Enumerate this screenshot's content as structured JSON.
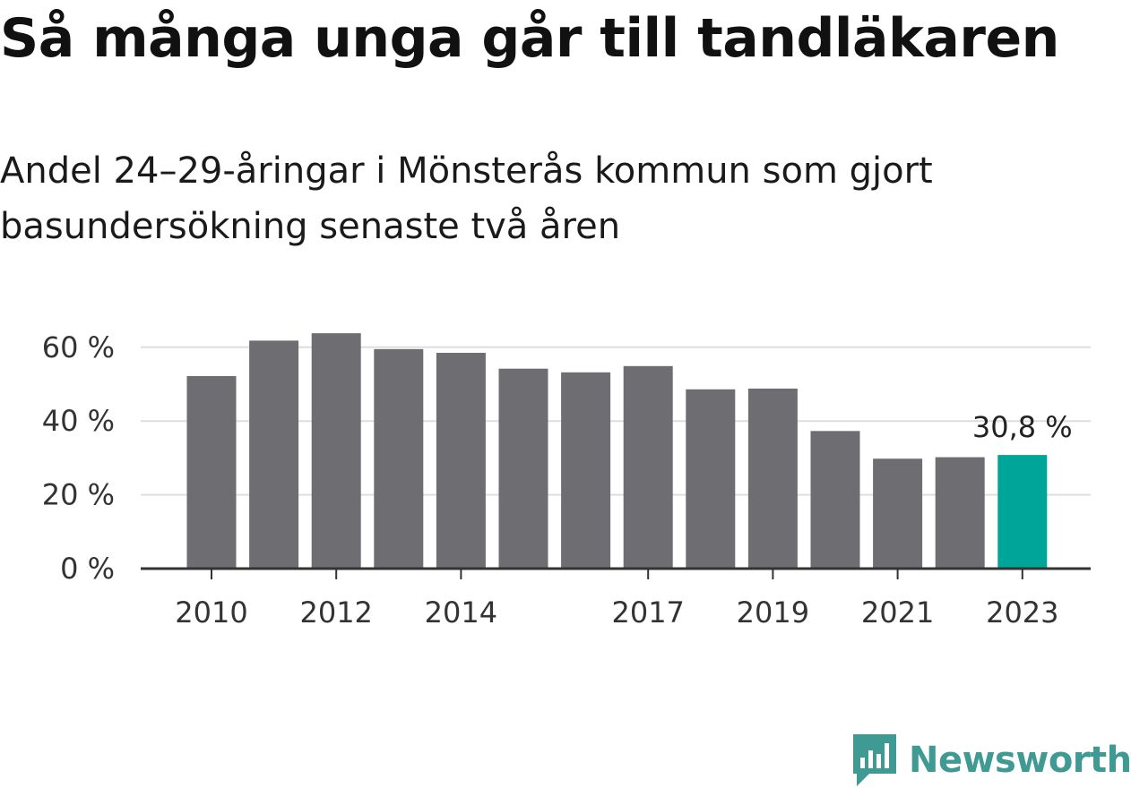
{
  "chart_data": {
    "type": "bar",
    "title": "Så många unga går till tandläkaren",
    "subtitle": "Andel 24–29-åringar i Mönsterås kommun som gjort basundersökning senaste två åren",
    "categories": [
      2010,
      2011,
      2012,
      2013,
      2014,
      2015,
      2016,
      2017,
      2018,
      2019,
      2020,
      2021,
      2022,
      2023
    ],
    "x_tick_labels": [
      "2010",
      "",
      "2012",
      "",
      "2014",
      "",
      "",
      "2017",
      "",
      "2019",
      "",
      "2021",
      "",
      "2023"
    ],
    "values": [
      52.2,
      61.8,
      63.8,
      59.5,
      58.5,
      54.2,
      53.2,
      54.9,
      48.6,
      48.8,
      37.3,
      29.8,
      30.2,
      30.8
    ],
    "ylim": [
      0,
      70
    ],
    "y_ticks": [
      0,
      20,
      40,
      60
    ],
    "y_tick_labels": [
      "0 %",
      "20 %",
      "40 %",
      "60 %"
    ],
    "annotations": [
      {
        "category": 2023,
        "label": "30,8 %"
      }
    ],
    "grid": true,
    "colors": {
      "bar": "#6e6d72",
      "highlight": "#00a59a",
      "grid": "#dddddd",
      "axis": "#333333"
    }
  },
  "branding": {
    "name": "Newsworthy",
    "color": "#3f9a94",
    "icon": "newsworthy-logo-icon"
  }
}
